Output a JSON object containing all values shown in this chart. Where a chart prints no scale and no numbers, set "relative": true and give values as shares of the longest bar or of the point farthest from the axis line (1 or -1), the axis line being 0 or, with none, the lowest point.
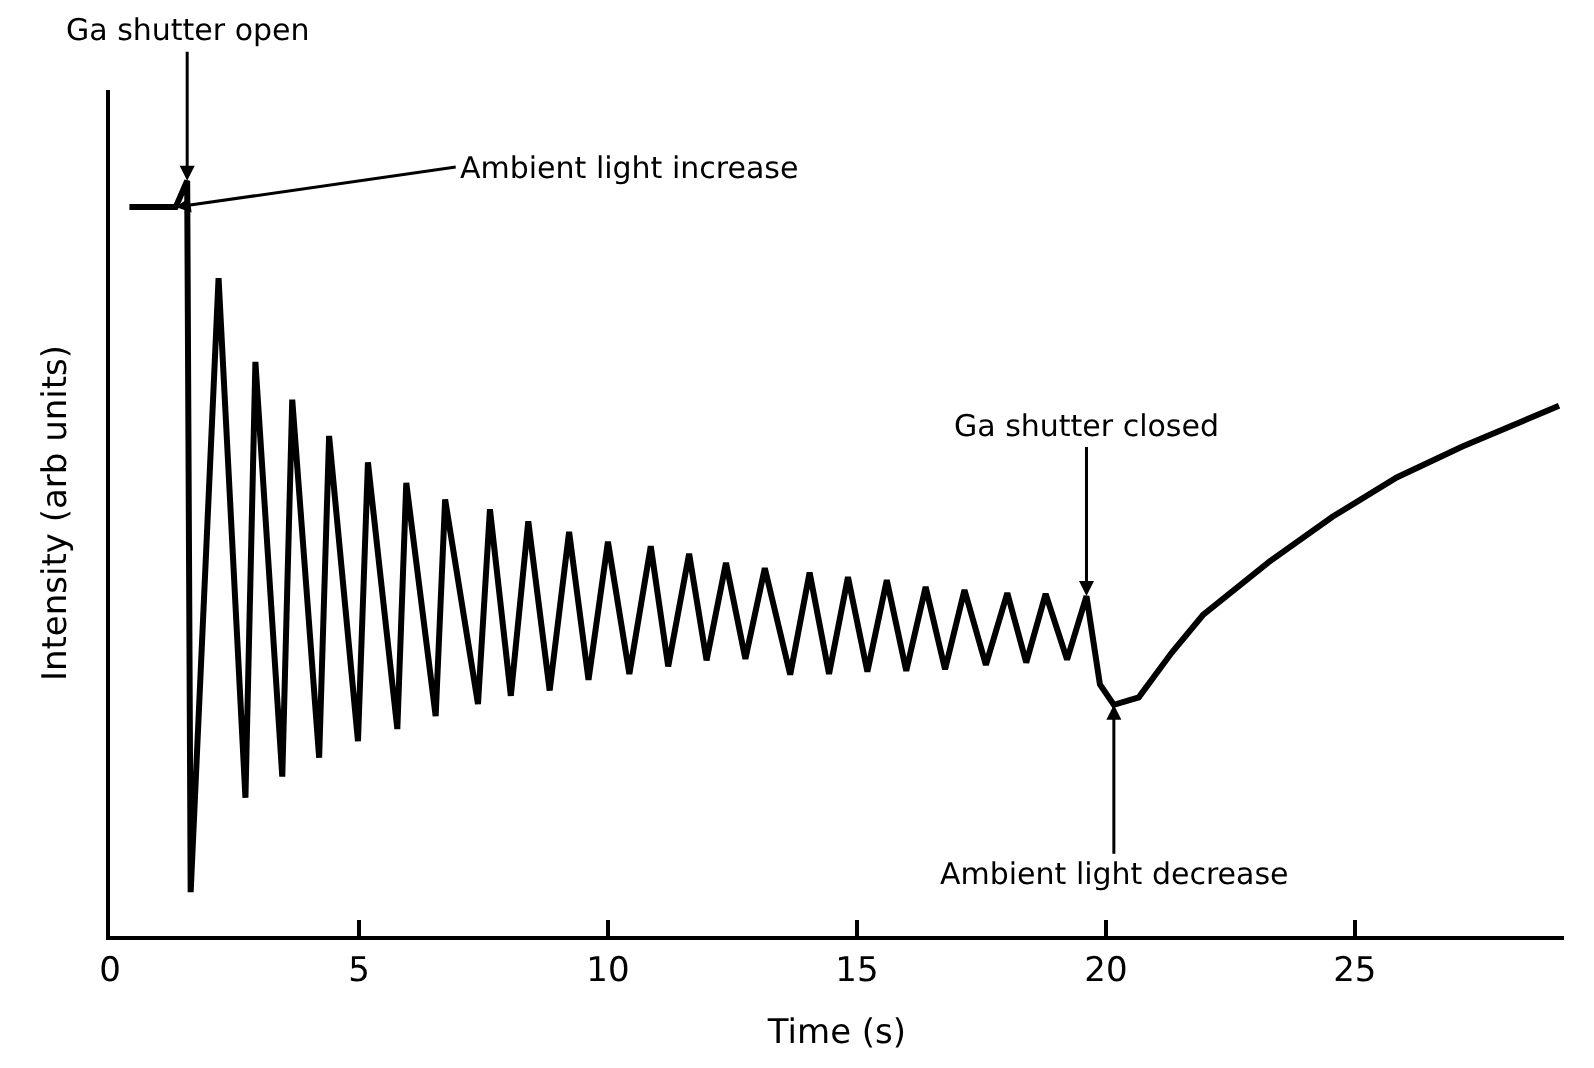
{
  "chart_data": {
    "type": "line",
    "relative": true,
    "xlabel": "Time (s)",
    "ylabel": "Intensity (arb units)",
    "xlim": [
      0,
      29.2
    ],
    "xticks": [
      0,
      5,
      10,
      15,
      20,
      25
    ],
    "marker": "none",
    "line_style": "solid",
    "x": [
      0.39,
      1.32,
      1.55,
      1.62,
      2.18,
      2.72,
      2.92,
      3.46,
      3.66,
      4.2,
      4.4,
      4.98,
      5.18,
      5.77,
      5.95,
      6.54,
      6.73,
      7.39,
      7.63,
      8.05,
      8.4,
      8.83,
      9.22,
      9.61,
      10.0,
      10.43,
      10.86,
      11.21,
      11.63,
      11.98,
      12.37,
      12.76,
      13.15,
      13.66,
      14.05,
      14.44,
      14.82,
      15.21,
      15.6,
      15.99,
      16.38,
      16.77,
      17.16,
      17.59,
      18.02,
      18.4,
      18.79,
      19.22,
      19.61,
      19.88,
      20.16,
      20.66,
      21.32,
      21.95,
      23.27,
      24.55,
      25.84,
      27.16,
      29.1
    ],
    "series": [
      {
        "color": "#000000",
        "values": [
          0.965,
          0.965,
          1.0,
          0.058,
          0.871,
          0.183,
          0.76,
          0.211,
          0.71,
          0.236,
          0.662,
          0.258,
          0.627,
          0.274,
          0.6,
          0.291,
          0.578,
          0.307,
          0.565,
          0.318,
          0.549,
          0.325,
          0.535,
          0.339,
          0.522,
          0.347,
          0.516,
          0.357,
          0.506,
          0.365,
          0.494,
          0.367,
          0.487,
          0.346,
          0.481,
          0.347,
          0.475,
          0.35,
          0.471,
          0.351,
          0.462,
          0.353,
          0.458,
          0.359,
          0.454,
          0.362,
          0.453,
          0.366,
          0.45,
          0.333,
          0.306,
          0.316,
          0.375,
          0.425,
          0.495,
          0.555,
          0.607,
          0.648,
          0.702
        ]
      }
    ],
    "annotations": [
      {
        "text": "Ga shutter open",
        "x": 1.55,
        "y": 1.0
      },
      {
        "text": "Ambient light increase",
        "x": 1.32,
        "y": 0.965
      },
      {
        "text": "Ga shutter closed",
        "x": 19.61,
        "y": 0.45
      },
      {
        "text": "Ambient light decrease",
        "x": 20.16,
        "y": 0.306
      }
    ]
  }
}
